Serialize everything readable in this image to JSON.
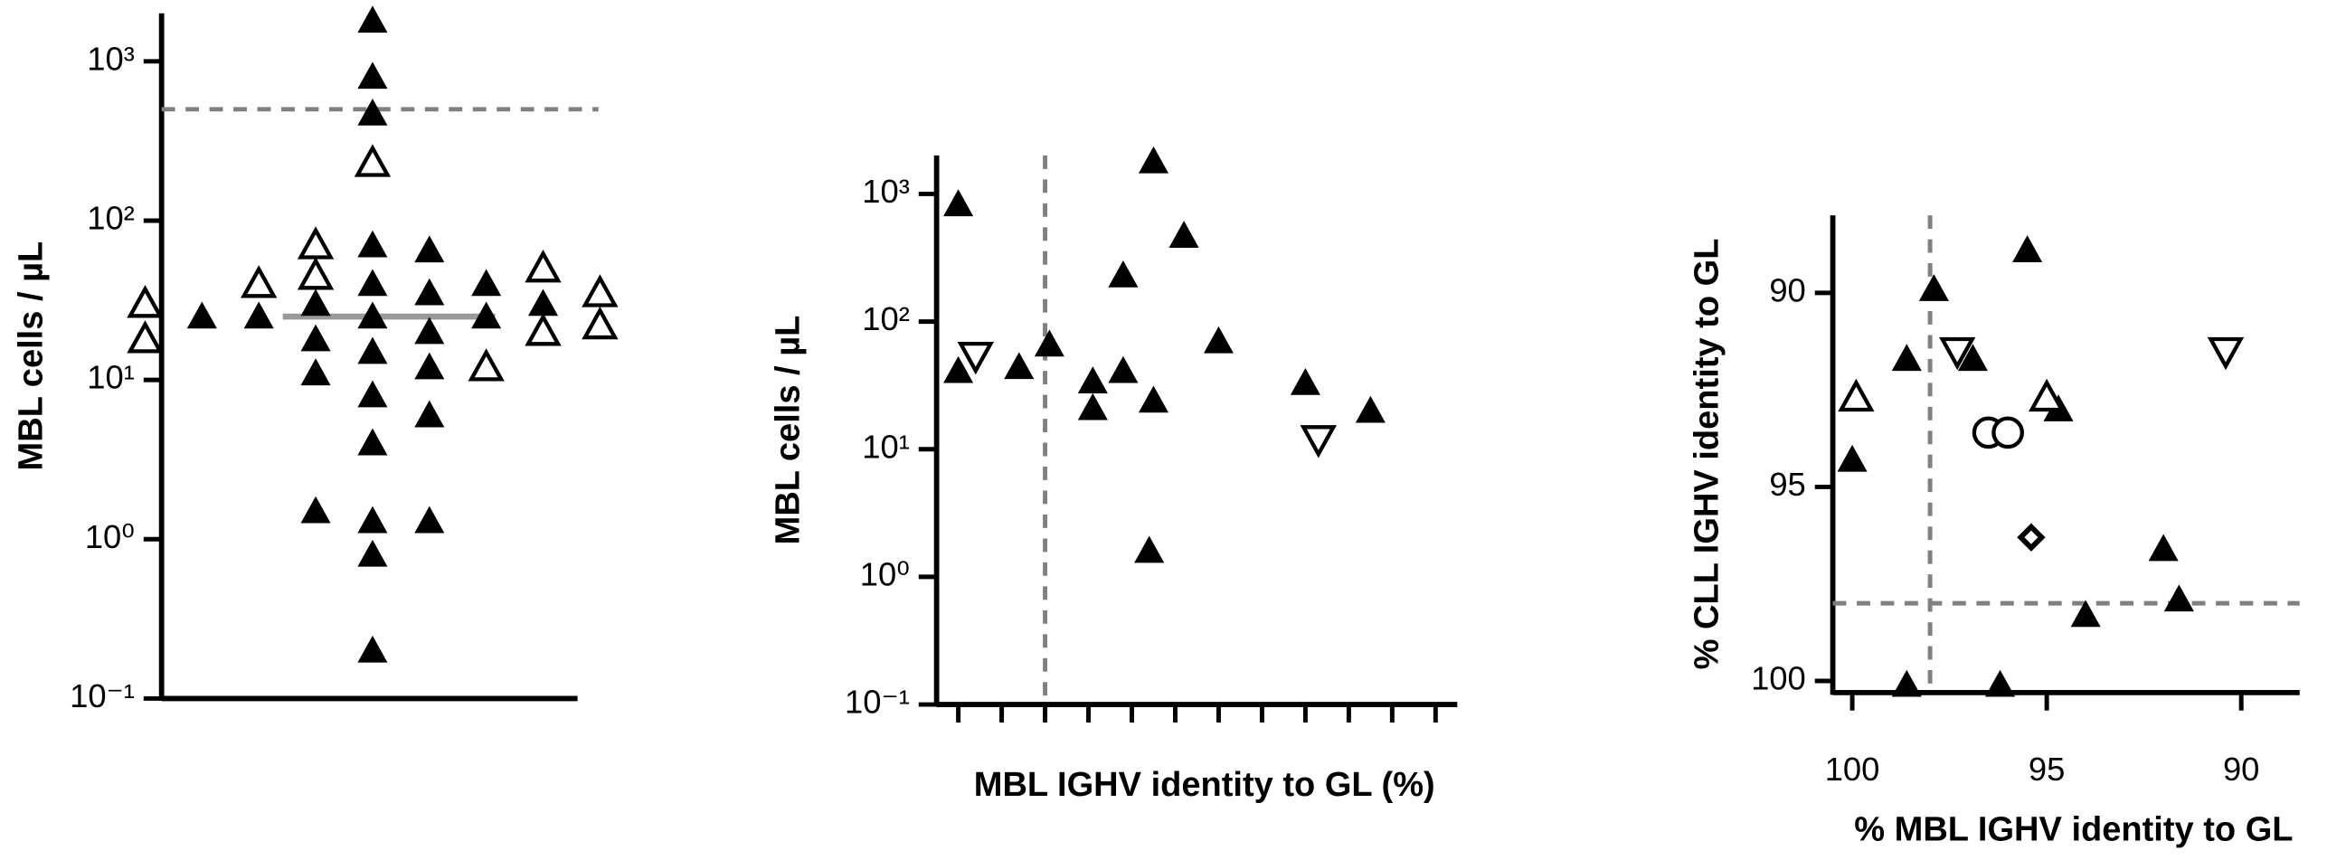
{
  "chart_data": [
    {
      "type": "strip",
      "ylabel": "MBL cells / µL",
      "ylog": true,
      "ylim": [
        0.1,
        2000
      ],
      "yticks": [
        {
          "value": 0.1,
          "label": "10⁻¹"
        },
        {
          "value": 1,
          "label": "10⁰"
        },
        {
          "value": 10,
          "label": "10¹"
        },
        {
          "value": 100,
          "label": "10²"
        },
        {
          "value": 1000,
          "label": "10³"
        }
      ],
      "series": [
        {
          "marker": "triangle-filled",
          "color": "#000000",
          "values": [
            1800,
            800,
            470,
            70,
            40,
            35,
            30,
            25,
            25,
            25,
            65,
            40,
            30,
            25,
            20,
            18,
            15,
            12,
            11,
            8,
            6,
            4,
            1.3,
            1.3,
            1.5,
            0.8,
            0.2
          ]
        },
        {
          "marker": "triangle-open",
          "color": "#000000",
          "values": [
            230,
            45,
            70,
            40,
            35,
            30,
            22,
            20,
            18,
            12,
            50
          ]
        }
      ],
      "median": 25,
      "median_color": "#999999",
      "hline": 500,
      "line_color": "#808080"
    },
    {
      "type": "scatter",
      "ylabel": "MBL cells / µL",
      "xlabel": "MBL IGHV identity to GL (%)",
      "ylog": true,
      "ylim": [
        0.1,
        2000
      ],
      "yticks": [
        {
          "value": 0.1,
          "label": "10⁻¹"
        },
        {
          "value": 1,
          "label": "10⁰"
        },
        {
          "value": 10,
          "label": "10¹"
        },
        {
          "value": 100,
          "label": "10²"
        },
        {
          "value": 1000,
          "label": "10³"
        }
      ],
      "xlim": [
        100.5,
        88.5
      ],
      "xticks": [
        100,
        99,
        98,
        97,
        96,
        95,
        94,
        93,
        92,
        91,
        90,
        89
      ],
      "xtick_labels": false,
      "series": [
        {
          "marker": "triangle-filled",
          "color": "#000000",
          "x": [
            100,
            100,
            98.6,
            97.9,
            96.9,
            96.9,
            96.2,
            96.2,
            95.5,
            95.5,
            95.6,
            94.8,
            94.0,
            92.0,
            90.5
          ],
          "values": [
            830,
            41,
            44,
            66,
            34,
            21,
            41,
            230,
            1800,
            24,
            1.6,
            470,
            70,
            33,
            20
          ]
        },
        {
          "marker": "triangle-down-open",
          "color": "#000000",
          "x": [
            99.6,
            91.7
          ],
          "values": [
            54,
            12
          ]
        }
      ],
      "vline": 98,
      "line_color": "#808080"
    },
    {
      "type": "scatter",
      "ylabel": "% CLL IGHV identity to GL",
      "xlabel": "% MBL IGHV identity to GL",
      "ylog": false,
      "ylim": [
        100.3,
        88
      ],
      "yticks": [
        90,
        95,
        100
      ],
      "xlim": [
        100.5,
        88.5
      ],
      "xticks": [
        100,
        95,
        90
      ],
      "xtick_labels": true,
      "series": [
        {
          "marker": "triangle-filled",
          "color": "#000000",
          "x": [
            100,
            98.6,
            97.9,
            98.6,
            96.9,
            96.2,
            95.5,
            94.7,
            94.0,
            92.0,
            91.6
          ],
          "values": [
            94.3,
            91.7,
            89.9,
            100.1,
            91.7,
            100.1,
            88.9,
            93.0,
            98.3,
            96.6,
            97.9
          ]
        },
        {
          "marker": "triangle-open",
          "color": "#000000",
          "x": [
            99.9,
            95.0
          ],
          "values": [
            92.7,
            92.7
          ]
        },
        {
          "marker": "triangle-down-open",
          "color": "#000000",
          "x": [
            97.3,
            90.4
          ],
          "values": [
            91.5,
            91.5
          ]
        },
        {
          "marker": "circle-open",
          "color": "#000000",
          "x": [
            96.5,
            96.0
          ],
          "values": [
            93.6,
            93.6
          ]
        },
        {
          "marker": "diamond-open",
          "color": "#000000",
          "x": [
            95.4
          ],
          "values": [
            96.3
          ]
        }
      ],
      "hline": 98,
      "vline": 98,
      "line_color": "#808080"
    }
  ]
}
